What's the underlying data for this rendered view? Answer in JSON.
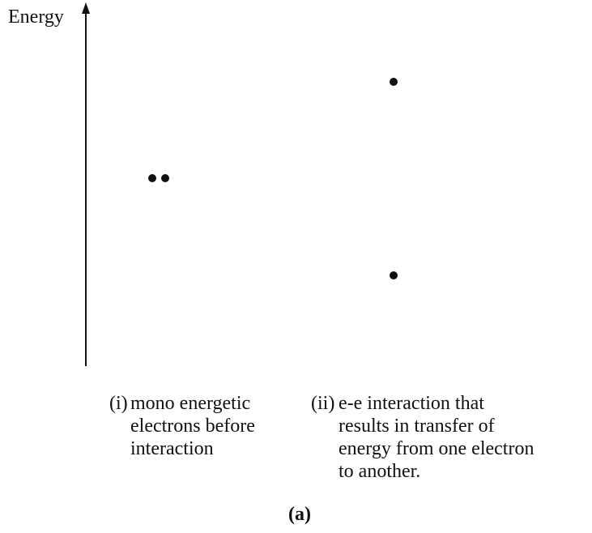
{
  "axis_label": "Energy",
  "captions": [
    {
      "label": "(i)",
      "lines": [
        "mono energetic",
        "electrons before",
        "interaction"
      ]
    },
    {
      "label": "(ii)",
      "lines": [
        "e-e interaction that",
        "results in transfer of",
        "energy from one electron",
        "to another."
      ]
    }
  ],
  "figure_label": "(a)"
}
